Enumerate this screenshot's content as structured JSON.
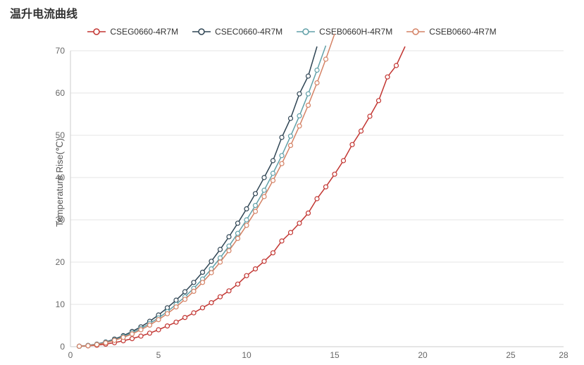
{
  "title": "温升电流曲线",
  "ylabel": "Temperature Rise(℃)",
  "chart": {
    "type": "line",
    "background_color": "#ffffff",
    "grid_color": "#e6e6e6",
    "axis_color": "#cccccc",
    "tick_fontsize": 12,
    "tick_color": "#666666",
    "xlim": [
      0,
      28
    ],
    "ylim": [
      0,
      70
    ],
    "xticks": [
      0,
      5,
      10,
      15,
      20,
      25,
      28
    ],
    "yticks": [
      0,
      10,
      20,
      30,
      40,
      50,
      60,
      70
    ],
    "line_width": 1.5,
    "marker_style": "open-circle",
    "marker_size": 3,
    "series": [
      {
        "name": "CSEG0660-4R7M",
        "color": "#c23531",
        "points": [
          [
            0.5,
            0.1
          ],
          [
            1,
            0.2
          ],
          [
            1.5,
            0.35
          ],
          [
            2,
            0.6
          ],
          [
            2.5,
            0.95
          ],
          [
            3,
            1.4
          ],
          [
            3.5,
            1.9
          ],
          [
            4,
            2.5
          ],
          [
            4.5,
            3.2
          ],
          [
            5,
            4.0
          ],
          [
            5.5,
            4.9
          ],
          [
            6,
            5.8
          ],
          [
            6.5,
            6.9
          ],
          [
            7,
            8.0
          ],
          [
            7.5,
            9.2
          ],
          [
            8,
            10.4
          ],
          [
            8.5,
            11.8
          ],
          [
            9,
            13.2
          ],
          [
            9.5,
            14.8
          ],
          [
            10,
            16.8
          ],
          [
            10.5,
            18.4
          ],
          [
            11,
            20.2
          ],
          [
            11.5,
            22.2
          ],
          [
            12,
            25.0
          ],
          [
            12.5,
            27.0
          ],
          [
            13,
            29.2
          ],
          [
            13.5,
            31.6
          ],
          [
            14,
            35.0
          ],
          [
            14.5,
            37.8
          ],
          [
            15,
            40.8
          ],
          [
            15.5,
            44.0
          ],
          [
            16,
            47.8
          ],
          [
            16.5,
            51.0
          ],
          [
            17,
            54.5
          ],
          [
            17.5,
            58.2
          ],
          [
            18,
            63.8
          ],
          [
            18.5,
            66.5
          ],
          [
            19,
            71.0
          ]
        ]
      },
      {
        "name": "CSEC0660-4R7M",
        "color": "#2f4554",
        "points": [
          [
            0.5,
            0.1
          ],
          [
            1,
            0.3
          ],
          [
            1.5,
            0.6
          ],
          [
            2,
            1.1
          ],
          [
            2.5,
            1.8
          ],
          [
            3,
            2.6
          ],
          [
            3.5,
            3.6
          ],
          [
            4,
            4.7
          ],
          [
            4.5,
            6.0
          ],
          [
            5,
            7.5
          ],
          [
            5.5,
            9.2
          ],
          [
            6,
            11.0
          ],
          [
            6.5,
            13.0
          ],
          [
            7,
            15.2
          ],
          [
            7.5,
            17.6
          ],
          [
            8,
            20.2
          ],
          [
            8.5,
            23.0
          ],
          [
            9,
            26.0
          ],
          [
            9.5,
            29.2
          ],
          [
            10,
            32.6
          ],
          [
            10.5,
            36.2
          ],
          [
            11,
            40.0
          ],
          [
            11.5,
            44.0
          ],
          [
            12,
            49.5
          ],
          [
            12.5,
            54.0
          ],
          [
            13,
            59.8
          ],
          [
            13.5,
            64.0
          ],
          [
            14,
            71.0
          ]
        ]
      },
      {
        "name": "CSEB0660H-4R7M",
        "color": "#61a0a8",
        "points": [
          [
            0.5,
            0.1
          ],
          [
            1,
            0.25
          ],
          [
            1.5,
            0.55
          ],
          [
            2,
            1.0
          ],
          [
            2.5,
            1.6
          ],
          [
            3,
            2.4
          ],
          [
            3.5,
            3.3
          ],
          [
            4,
            4.3
          ],
          [
            4.5,
            5.5
          ],
          [
            5,
            6.8
          ],
          [
            5.5,
            8.3
          ],
          [
            6,
            10.0
          ],
          [
            6.5,
            11.8
          ],
          [
            7,
            13.8
          ],
          [
            7.5,
            16.0
          ],
          [
            8,
            18.4
          ],
          [
            8.5,
            21.0
          ],
          [
            9,
            23.8
          ],
          [
            9.5,
            26.8
          ],
          [
            10,
            30.0
          ],
          [
            10.5,
            33.4
          ],
          [
            11,
            37.0
          ],
          [
            11.5,
            41.0
          ],
          [
            12,
            45.2
          ],
          [
            12.5,
            49.8
          ],
          [
            13,
            54.6
          ],
          [
            13.5,
            59.8
          ],
          [
            14,
            65.4
          ],
          [
            14.5,
            71.2
          ]
        ]
      },
      {
        "name": "CSEB0660-4R7M",
        "color": "#d48265",
        "points": [
          [
            0.5,
            0.1
          ],
          [
            1,
            0.22
          ],
          [
            1.5,
            0.5
          ],
          [
            2,
            0.9
          ],
          [
            2.5,
            1.5
          ],
          [
            3,
            2.2
          ],
          [
            3.5,
            3.0
          ],
          [
            4,
            4.0
          ],
          [
            4.5,
            5.1
          ],
          [
            5,
            6.4
          ],
          [
            5.5,
            7.8
          ],
          [
            6,
            9.4
          ],
          [
            6.5,
            11.2
          ],
          [
            7,
            13.1
          ],
          [
            7.5,
            15.2
          ],
          [
            8,
            17.5
          ],
          [
            8.5,
            20.0
          ],
          [
            9,
            22.7
          ],
          [
            9.5,
            25.6
          ],
          [
            10,
            28.7
          ],
          [
            10.5,
            32.0
          ],
          [
            11,
            35.5
          ],
          [
            11.5,
            39.3
          ],
          [
            12,
            43.3
          ],
          [
            12.5,
            47.6
          ],
          [
            13,
            52.2
          ],
          [
            13.5,
            57.1
          ],
          [
            14,
            62.4
          ],
          [
            14.5,
            68.0
          ],
          [
            15,
            74.0
          ]
        ]
      }
    ]
  },
  "legend": {
    "items": [
      {
        "label": "CSEG0660-4R7M",
        "color": "#c23531"
      },
      {
        "label": "CSEC0660-4R7M",
        "color": "#2f4554"
      },
      {
        "label": "CSEB0660H-4R7M",
        "color": "#61a0a8"
      },
      {
        "label": "CSEB0660-4R7M",
        "color": "#d48265"
      }
    ],
    "fontsize": 12,
    "position": "top-center"
  }
}
